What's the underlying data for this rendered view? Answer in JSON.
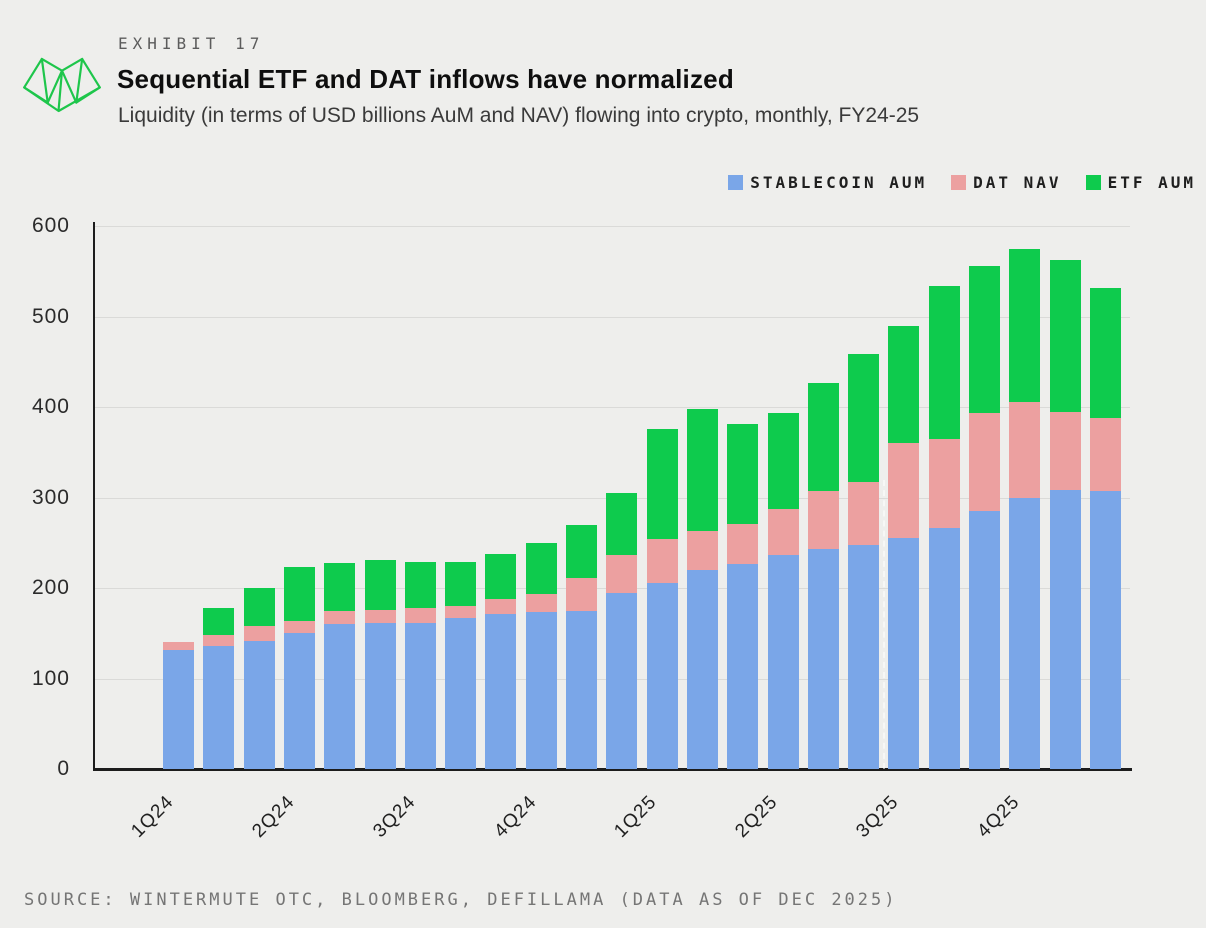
{
  "header": {
    "exhibit": "EXHIBIT 17",
    "title": "Sequential ETF and DAT inflows have normalized",
    "subtitle": "Liquidity (in terms of USD billions AuM and NAV) flowing into crypto, monthly, FY24-25"
  },
  "legend": [
    {
      "label": "STABLECOIN AUM",
      "color": "#7aa6e8"
    },
    {
      "label": "DAT NAV",
      "color": "#eca0a0"
    },
    {
      "label": "ETF AUM",
      "color": "#0ecb4d"
    }
  ],
  "chart_data": {
    "type": "bar",
    "stacked": true,
    "title": "Sequential ETF and DAT inflows have normalized",
    "ylabel": "USD billions",
    "xlabel": "",
    "ylim": [
      0,
      600
    ],
    "yticks": [
      0,
      100,
      200,
      300,
      400,
      500,
      600
    ],
    "grid": true,
    "legend_position": "top-right",
    "x_quarter_labels": [
      "1Q24",
      "2Q24",
      "3Q24",
      "4Q24",
      "1Q25",
      "2Q25",
      "3Q25",
      "4Q25"
    ],
    "bars_per_quarter": 3,
    "series": [
      {
        "name": "STABLECOIN AUM",
        "color": "#7aa6e8",
        "values": [
          131,
          136,
          141,
          150,
          160,
          161,
          161,
          167,
          171,
          173,
          175,
          194,
          206,
          220,
          227,
          236,
          243,
          247,
          255,
          266,
          285,
          300,
          308,
          307
        ]
      },
      {
        "name": "DAT NAV",
        "color": "#eca0a0",
        "values": [
          9,
          12,
          17,
          14,
          15,
          15,
          17,
          13,
          17,
          20,
          36,
          42,
          48,
          43,
          44,
          51,
          64,
          70,
          105,
          99,
          108,
          105,
          86,
          81
        ]
      },
      {
        "name": "ETF AUM",
        "color": "#0ecb4d",
        "values": [
          0,
          30,
          42,
          59,
          53,
          55,
          51,
          49,
          50,
          57,
          59,
          69,
          122,
          135,
          110,
          106,
          120,
          142,
          129,
          169,
          163,
          170,
          169,
          143
        ]
      }
    ]
  },
  "marker": {
    "position_after_bar": 18
  },
  "source": "SOURCE: WINTERMUTE OTC, BLOOMBERG, DEFILLAMA (DATA AS OF DEC 2025)",
  "colors": {
    "background": "#eeeeec",
    "gridline": "#dadad8",
    "axis": "#1c1c1c",
    "logo_green": "#1ec64b"
  }
}
